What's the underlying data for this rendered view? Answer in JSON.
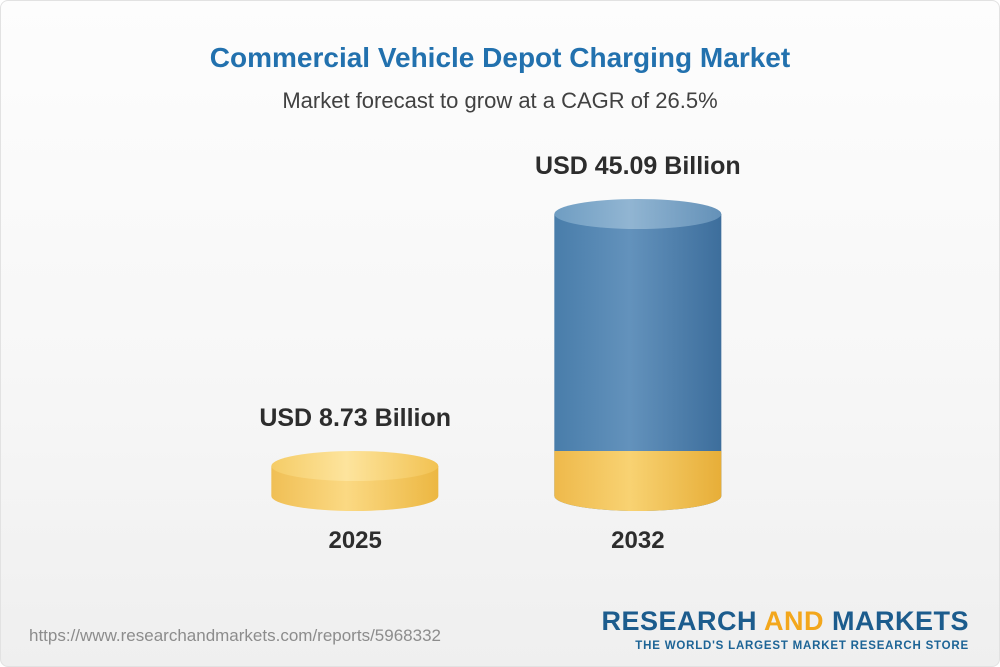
{
  "page": {
    "title": "Commercial Vehicle Depot Charging Market",
    "subtitle": "Market forecast to grow at a CAGR of 26.5%"
  },
  "chart_data": {
    "type": "bar",
    "style": "3d-cylinder",
    "title": "Commercial Vehicle Depot Charging Market",
    "subtitle": "Market forecast to grow at a CAGR of 26.5%",
    "cagr_percent": 26.5,
    "unit": "USD Billion",
    "categories": [
      "2025",
      "2032"
    ],
    "values": [
      8.73,
      45.09
    ],
    "value_labels": [
      "USD 8.73 Billion",
      "USD 45.09 Billion"
    ],
    "series_notes": "2032 cylinder has a gold base segment equal to the 2025 value, blue above it",
    "colors": {
      "bar_2025": "#f5c95f",
      "bar_2032": "#4d81ab",
      "bar_2032_base": "#f0bd4f",
      "title_text": "#2271ae",
      "label_text": "#2d2d2d"
    },
    "legend": "none",
    "gridlines": false,
    "axes": "none"
  },
  "footer": {
    "url": "https://www.researchandmarkets.com/reports/5968332",
    "logo": {
      "word1": "RESEARCH",
      "word2": "AND",
      "word3": "MARKETS",
      "tagline": "THE WORLD'S LARGEST MARKET RESEARCH STORE"
    }
  }
}
